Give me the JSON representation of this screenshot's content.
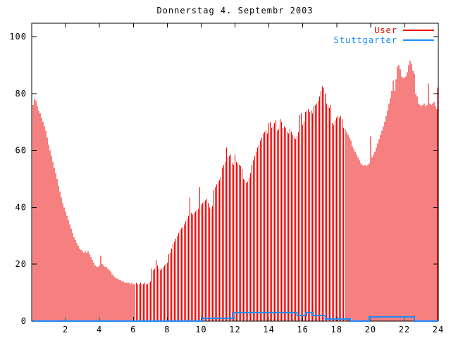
{
  "title": "Donnerstag 4. Septembr 2003",
  "legend": {
    "items": [
      {
        "label": "User",
        "color": "#ee0000"
      },
      {
        "label": "Stuttgarter",
        "color": "#1a8cff"
      }
    ]
  },
  "axes": {
    "x": {
      "min": 0,
      "max": 24,
      "tick_step": 2,
      "tick_labels": [
        "2",
        "4",
        "6",
        "8",
        "10",
        "12",
        "14",
        "16",
        "18",
        "20",
        "22",
        "24"
      ]
    },
    "y": {
      "min": 0,
      "max": 100,
      "tick_step": 20,
      "tick_labels": [
        "0",
        "20",
        "40",
        "60",
        "80",
        "100"
      ]
    }
  },
  "chart_data": {
    "type": "bar",
    "title": "Donnerstag 4. Septembr 2003",
    "xlabel": "",
    "ylabel": "",
    "xlim": [
      0,
      24
    ],
    "ylim": [
      0,
      100
    ],
    "grid": false,
    "legend_position": "top-right-inside",
    "x_unit": "hour-of-day",
    "sample_interval_minutes": 5,
    "series": [
      {
        "name": "User",
        "style": "impulses",
        "color": "#ee0000",
        "start_hour": 0.08333,
        "step_hours": 0.08333,
        "values": [
          76,
          78,
          77.5,
          75.5,
          74,
          73,
          71.5,
          70,
          68.5,
          67,
          64.5,
          62,
          60,
          58,
          56,
          54,
          52,
          50,
          47.5,
          45.5,
          43.5,
          41.5,
          40,
          38.5,
          37,
          35.5,
          34,
          32.5,
          31,
          29.5,
          28.5,
          27.5,
          26.5,
          25.5,
          25,
          24.5,
          24,
          24.5,
          24,
          24.5,
          23.5,
          22.5,
          21.5,
          20.5,
          19.5,
          19,
          19,
          19.5,
          23,
          20,
          19.5,
          19,
          19,
          18.5,
          18,
          17.5,
          16.5,
          16,
          15.5,
          15,
          15,
          14.5,
          14.5,
          14,
          14,
          13.5,
          13.5,
          13.5,
          13.5,
          13,
          13.5,
          13,
          13,
          13.5,
          13,
          13,
          13.5,
          13,
          13,
          13.5,
          13,
          13,
          13.5,
          14,
          18.5,
          18,
          18.5,
          21.5,
          19.5,
          18.5,
          18,
          18.5,
          19,
          19.5,
          20,
          20.5,
          23.5,
          24,
          25.5,
          27,
          28,
          29,
          30,
          31,
          32,
          32.5,
          33,
          34,
          35,
          36,
          37,
          43.5,
          38,
          37.5,
          38,
          38.5,
          39,
          39.5,
          47,
          41,
          41.5,
          42,
          42.5,
          43,
          41.5,
          40,
          39.5,
          40.5,
          46,
          47,
          48,
          49,
          49.5,
          50.5,
          54,
          55,
          56,
          61,
          57.5,
          58,
          58.5,
          55.5,
          55,
          58.5,
          56,
          55.5,
          55,
          54.5,
          53.5,
          50,
          49.5,
          48.5,
          49,
          50.5,
          52,
          55,
          56.5,
          58,
          59.5,
          61,
          62,
          63.5,
          64.5,
          66,
          66.5,
          67,
          66,
          69.5,
          70,
          68,
          68.5,
          69.5,
          70.5,
          67,
          67.5,
          71,
          70,
          68,
          68.5,
          68,
          66.5,
          66,
          67.5,
          66.5,
          65.5,
          64.5,
          64,
          65,
          66.5,
          72.5,
          73,
          69,
          70,
          73.5,
          74,
          74.5,
          73.5,
          74,
          73,
          75.5,
          76,
          76.5,
          77.5,
          79,
          81,
          82.5,
          82,
          80,
          76.5,
          75.5,
          75,
          76,
          69.5,
          69,
          70.5,
          71.5,
          72,
          71.5,
          72,
          71,
          68,
          67.5,
          66.5,
          65.5,
          64.5,
          63.5,
          61.5,
          60.5,
          59.5,
          58.5,
          57.5,
          56.5,
          55.5,
          55,
          54.5,
          55,
          54.5,
          55,
          55.5,
          65,
          57.5,
          58.5,
          59.5,
          61,
          62.5,
          64,
          65.5,
          67,
          68.5,
          70,
          72,
          74,
          76.5,
          78.5,
          81,
          84.5,
          81,
          85,
          89.5,
          90,
          88.5,
          86,
          85.5,
          85.5,
          86,
          87.5,
          90,
          91.5,
          90.5,
          88,
          87,
          80,
          79,
          76.5,
          76,
          75.5,
          76,
          76.5,
          75.5,
          76,
          83.5,
          76.5,
          76,
          76.5,
          77,
          75.5,
          74.5,
          82
        ]
      },
      {
        "name": "Stuttgarter",
        "style": "steps",
        "color": "#1a8cff",
        "segments": [
          {
            "from": 0.08,
            "to": 10.08,
            "value": 0
          },
          {
            "from": 10.08,
            "to": 11.92,
            "value": 1
          },
          {
            "from": 11.92,
            "to": 15.67,
            "value": 3
          },
          {
            "from": 15.67,
            "to": 16.17,
            "value": 2
          },
          {
            "from": 16.17,
            "to": 16.58,
            "value": 3
          },
          {
            "from": 16.58,
            "to": 17.33,
            "value": 2
          },
          {
            "from": 17.33,
            "to": 18.83,
            "value": 0.8
          },
          {
            "from": 18.83,
            "to": 19.92,
            "value": 0
          },
          {
            "from": 19.92,
            "to": 22.58,
            "value": 1.5
          },
          {
            "from": 22.58,
            "to": 24,
            "value": 0
          }
        ]
      }
    ]
  }
}
